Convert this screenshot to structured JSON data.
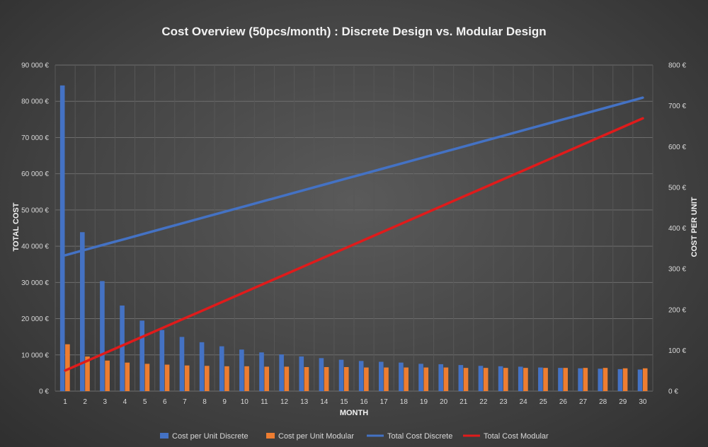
{
  "chart_data": {
    "type": "bar",
    "title": "Cost Overview (50pcs/month) : Discrete Design vs. Modular Design",
    "xlabel": "MONTH",
    "ylabel": "TOTAL COST",
    "y2label": "COST PER UNIT",
    "categories": [
      "1",
      "2",
      "3",
      "4",
      "5",
      "6",
      "7",
      "8",
      "9",
      "10",
      "11",
      "12",
      "13",
      "14",
      "15",
      "16",
      "17",
      "18",
      "19",
      "20",
      "21",
      "22",
      "23",
      "24",
      "25",
      "26",
      "27",
      "28",
      "29",
      "30"
    ],
    "ylim": [
      0,
      90000
    ],
    "y2lim": [
      0,
      800
    ],
    "y_ticks": [
      "0 €",
      "10 000 €",
      "20 000 €",
      "30 000 €",
      "40 000 €",
      "50 000 €",
      "60 000 €",
      "70 000 €",
      "80 000 €",
      "90 000 €"
    ],
    "y2_ticks": [
      "0 €",
      "100 €",
      "200 €",
      "300 €",
      "400 €",
      "500 €",
      "600 €",
      "700 €",
      "800 €"
    ],
    "grid": true,
    "legend_position": "bottom",
    "series": [
      {
        "name": "Cost per Unit Discrete",
        "type": "bar",
        "axis": "secondary",
        "color": "#4472c4",
        "values": [
          750,
          390,
          270,
          210,
          173,
          150,
          133,
          120,
          110,
          102,
          95,
          90,
          85,
          81,
          77,
          74,
          72,
          70,
          67,
          66,
          64,
          62,
          61,
          60,
          58,
          57,
          56,
          55,
          54,
          53
        ]
      },
      {
        "name": "Cost per Unit Modular",
        "type": "bar",
        "axis": "secondary",
        "color": "#ed7d31",
        "values": [
          115,
          85,
          75,
          70,
          67,
          65,
          63,
          62,
          61,
          61,
          60,
          60,
          59,
          59,
          59,
          58,
          58,
          58,
          58,
          58,
          57,
          57,
          57,
          57,
          57,
          57,
          57,
          57,
          56,
          56
        ]
      },
      {
        "name": "Total Cost Discrete",
        "type": "line",
        "axis": "primary",
        "color": "#4472c4",
        "values": [
          37500,
          39000,
          40500,
          42000,
          43500,
          45000,
          46500,
          48000,
          49500,
          51000,
          52500,
          54000,
          55500,
          57000,
          58500,
          60000,
          61500,
          63000,
          64500,
          66000,
          67500,
          69000,
          70500,
          72000,
          73500,
          75000,
          76500,
          78000,
          79500,
          81000
        ]
      },
      {
        "name": "Total Cost Modular",
        "type": "line",
        "axis": "primary",
        "color": "#e01b1b",
        "values": [
          5700,
          8100,
          10500,
          12900,
          15300,
          17700,
          20100,
          22500,
          24900,
          27300,
          29700,
          32100,
          34500,
          36900,
          39300,
          41700,
          44100,
          46500,
          48900,
          51300,
          53700,
          56100,
          58500,
          60900,
          63300,
          65700,
          68100,
          70500,
          72900,
          75300
        ]
      }
    ]
  }
}
